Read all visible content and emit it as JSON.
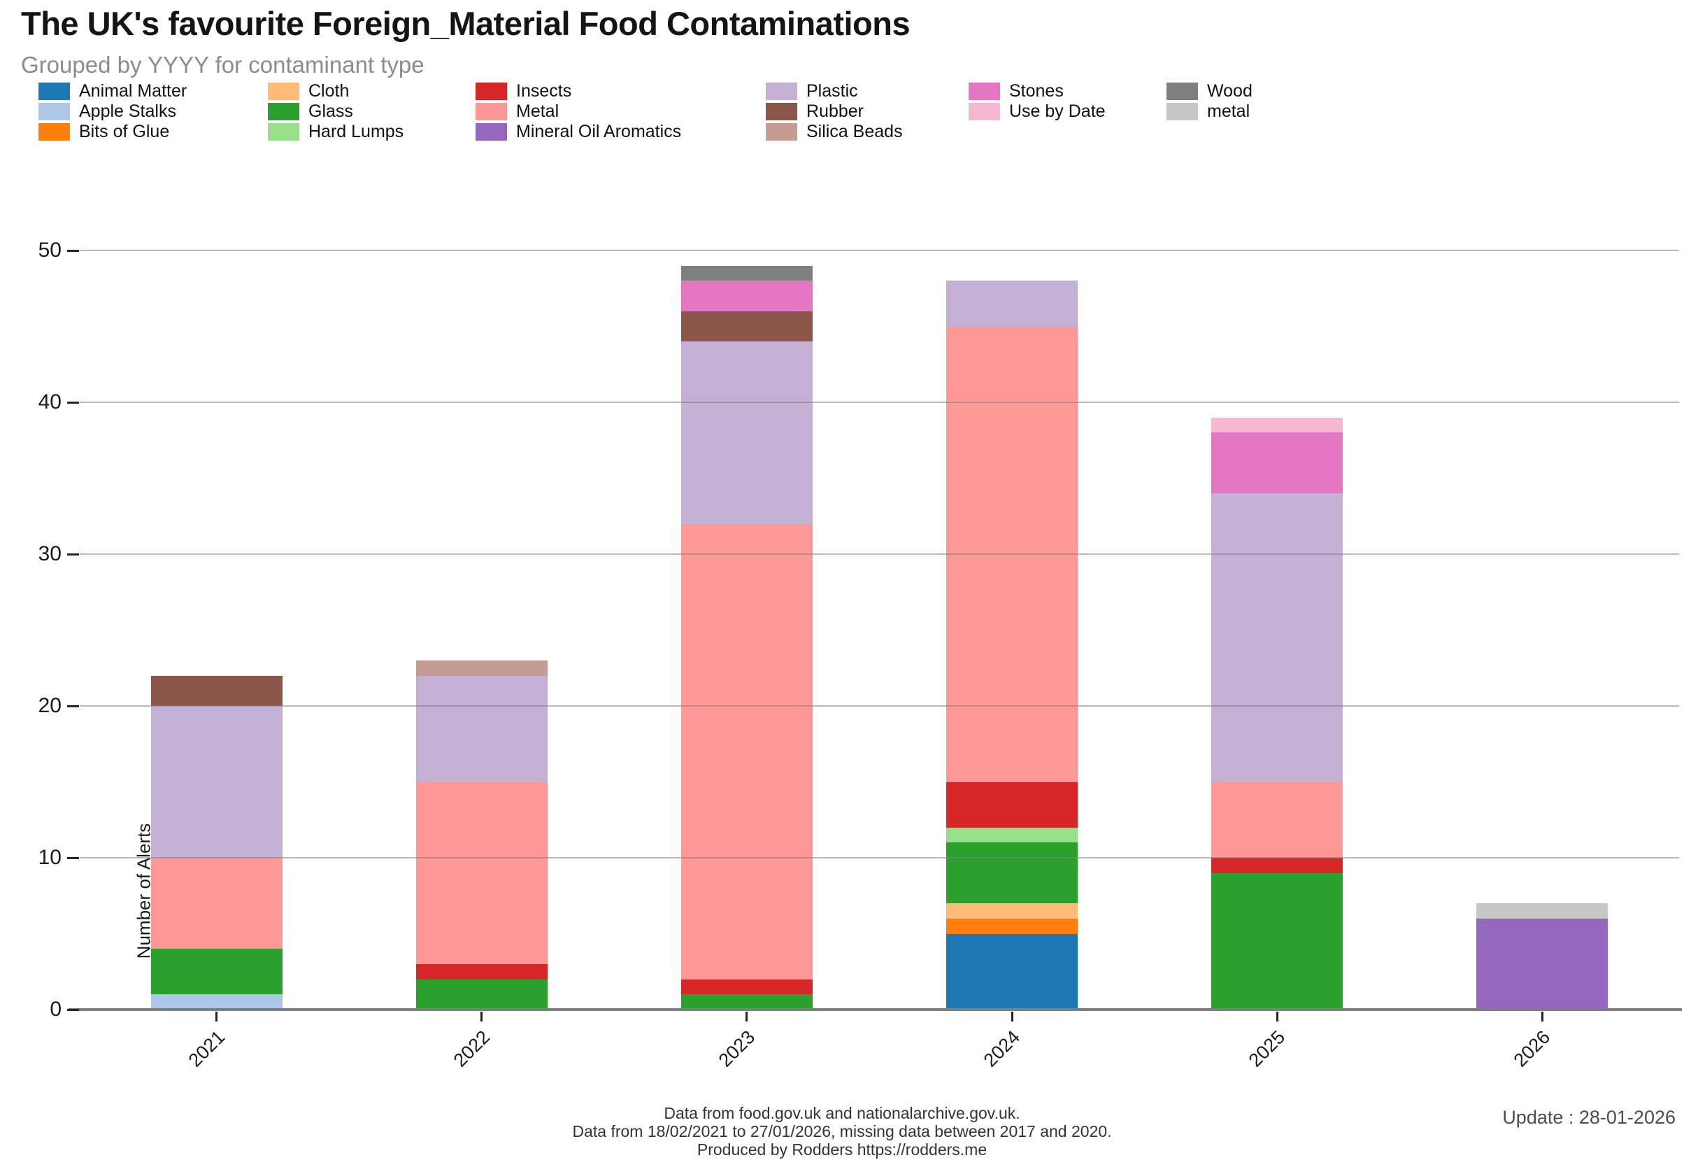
{
  "title": "The UK's favourite Foreign_Material Food Contaminations",
  "subtitle": "Grouped by YYYY for contaminant type",
  "update_label": "Update : 28-01-2026",
  "footer_lines": [
    "Data from food.gov.uk and nationalarchive.gov.uk.",
    "Data from 18/02/2021 to 27/01/2026, missing data between 2017 and 2020.",
    "Produced by Rodders https://rodders.me"
  ],
  "y_axis": {
    "label": "Number of Alerts",
    "ticks": [
      0,
      10,
      20,
      30,
      40,
      50
    ],
    "max": 50
  },
  "legend": {
    "columns": [
      [
        "Animal Matter",
        "Apple Stalks",
        "Bits of Glue"
      ],
      [
        "Cloth",
        "Glass",
        "Hard Lumps"
      ],
      [
        "Insects",
        "Metal",
        "Mineral Oil Aromatics"
      ],
      [
        "Plastic",
        "Rubber",
        "Silica Beads"
      ],
      [
        "Stones",
        "Use by Date"
      ],
      [
        "Wood",
        "metal"
      ]
    ]
  },
  "chart_data": {
    "type": "bar",
    "stacked": true,
    "title": "The UK's favourite Foreign_Material Food Contaminations",
    "subtitle": "Grouped by YYYY for contaminant type",
    "xlabel": "",
    "ylabel": "Number of Alerts",
    "ylim": [
      0,
      50
    ],
    "grid": "horizontal",
    "legend_position": "top",
    "categories": [
      "2021",
      "2022",
      "2023",
      "2024",
      "2025",
      "2026"
    ],
    "series": [
      {
        "name": "Animal Matter",
        "color": "#1f77b4",
        "values": [
          0,
          0,
          0,
          5,
          0,
          0
        ]
      },
      {
        "name": "Apple Stalks",
        "color": "#aec7e8",
        "values": [
          1,
          0,
          0,
          0,
          0,
          0
        ]
      },
      {
        "name": "Bits of Glue",
        "color": "#ff7f0e",
        "values": [
          0,
          0,
          0,
          1,
          0,
          0
        ]
      },
      {
        "name": "Cloth",
        "color": "#ffbb78",
        "values": [
          0,
          0,
          0,
          1,
          0,
          0
        ]
      },
      {
        "name": "Glass",
        "color": "#2ca02c",
        "values": [
          3,
          2,
          1,
          4,
          9,
          0
        ]
      },
      {
        "name": "Hard Lumps",
        "color": "#98df8a",
        "values": [
          0,
          0,
          0,
          1,
          0,
          0
        ]
      },
      {
        "name": "Insects",
        "color": "#d62728",
        "values": [
          0,
          1,
          1,
          3,
          1,
          0
        ]
      },
      {
        "name": "Metal",
        "color": "#ff9896",
        "values": [
          6,
          12,
          30,
          30,
          5,
          0
        ]
      },
      {
        "name": "Mineral Oil Aromatics",
        "color": "#9467bd",
        "values": [
          0,
          0,
          0,
          0,
          0,
          6
        ]
      },
      {
        "name": "Plastic",
        "color": "#c5b0d5",
        "values": [
          10,
          7,
          12,
          3,
          19,
          0
        ]
      },
      {
        "name": "Rubber",
        "color": "#8c564b",
        "values": [
          2,
          0,
          2,
          0,
          0,
          0
        ]
      },
      {
        "name": "Silica Beads",
        "color": "#c49c94",
        "values": [
          0,
          1,
          0,
          0,
          0,
          0
        ]
      },
      {
        "name": "Stones",
        "color": "#e377c2",
        "values": [
          0,
          0,
          2,
          0,
          4,
          0
        ]
      },
      {
        "name": "Use by Date",
        "color": "#f7b6d2",
        "values": [
          0,
          0,
          0,
          0,
          1,
          0
        ]
      },
      {
        "name": "Wood",
        "color": "#7f7f7f",
        "values": [
          0,
          0,
          1,
          0,
          0,
          0
        ]
      },
      {
        "name": "metal",
        "color": "#c7c7c7",
        "values": [
          0,
          0,
          0,
          0,
          0,
          1
        ]
      }
    ],
    "totals": [
      22,
      23,
      49,
      48,
      39,
      7
    ]
  }
}
